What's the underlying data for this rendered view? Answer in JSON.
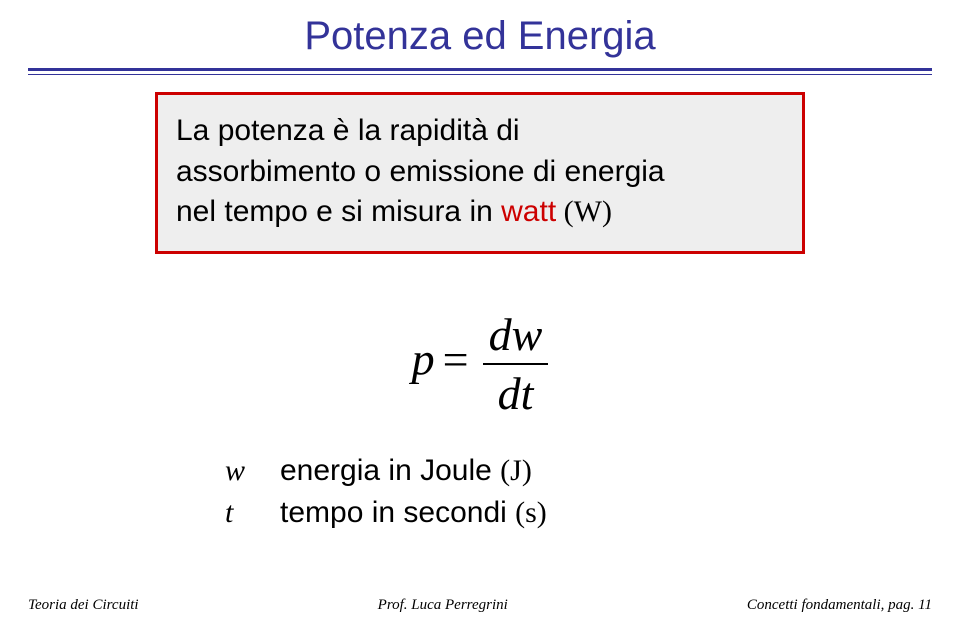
{
  "title": {
    "text": "Potenza ed Energia",
    "color": "#333399",
    "fontsize": 40
  },
  "definition": {
    "line1": "La potenza è la rapidità di",
    "line2_pre": "assorbimento o emissione di energia",
    "line3_pre": "nel tempo e si misura in ",
    "highlight_word": "watt",
    "unit_paren": " (W)",
    "border_color": "#cc0000",
    "bg_color": "#eeeeee",
    "text_color": "#000000",
    "fontsize": 30
  },
  "formula": {
    "lhs": "p",
    "eq": "=",
    "numerator": "dw",
    "denominator": "dt",
    "fontsize": 46
  },
  "legend": {
    "rows": [
      {
        "symbol": "w",
        "desc_pre": "energia in Joule ",
        "unit": "(J)"
      },
      {
        "symbol": "t",
        "desc_pre": "tempo in secondi ",
        "unit": "(s)"
      }
    ],
    "fontsize": 30
  },
  "footer": {
    "left": "Teoria dei Circuiti",
    "center": "Prof. Luca Perregrini",
    "right": "Concetti fondamentali, pag. 11",
    "fontsize": 15
  },
  "colors": {
    "rule": "#333399",
    "highlight": "#cc0000",
    "background": "#ffffff"
  }
}
